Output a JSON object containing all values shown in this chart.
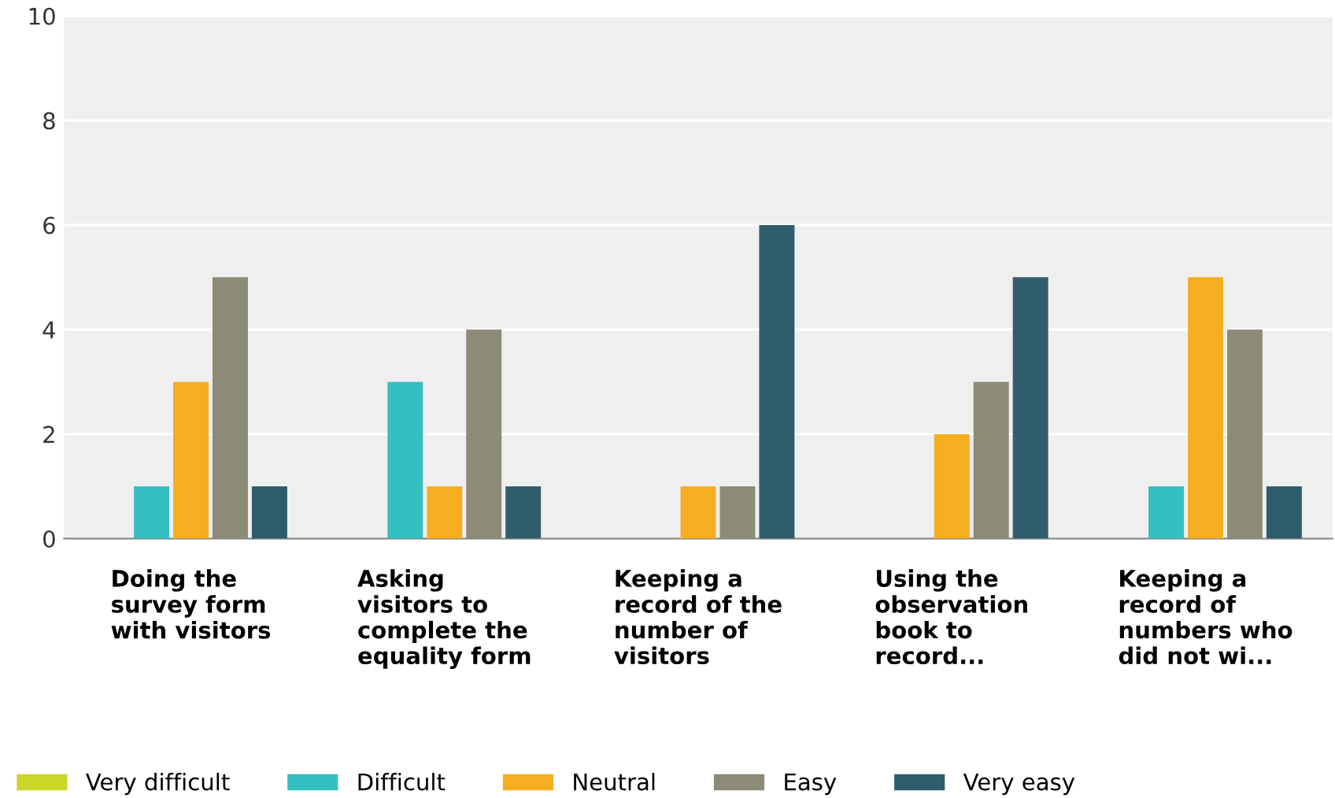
{
  "chart_data": {
    "type": "bar",
    "categories": [
      "Doing the\nsurvey form\nwith visitors",
      "Asking\nvisitors to\ncomplete the\nequality form",
      "Keeping a\nrecord of the\nnumber of\nvisitors",
      "Using the\nobservation\nbook to\nrecord...",
      "Keeping a\nrecord of\nnumbers who\ndid not wi..."
    ],
    "series": [
      {
        "name": "Very difficult",
        "color": "#c9d62a",
        "values": [
          0,
          0,
          0,
          0,
          0
        ]
      },
      {
        "name": "Difficult",
        "color": "#35bfc1",
        "values": [
          1,
          3,
          0,
          0,
          1
        ]
      },
      {
        "name": "Neutral",
        "color": "#f6ae21",
        "values": [
          3,
          1,
          1,
          2,
          5
        ]
      },
      {
        "name": "Easy",
        "color": "#8c8b78",
        "values": [
          5,
          4,
          1,
          3,
          4
        ]
      },
      {
        "name": "Very easy",
        "color": "#2f5d6c",
        "values": [
          1,
          1,
          6,
          5,
          1
        ]
      }
    ],
    "ylim": [
      0,
      10
    ],
    "yticks": [
      0,
      2,
      4,
      6,
      8,
      10
    ],
    "grid": "y",
    "legend": "bottom"
  }
}
